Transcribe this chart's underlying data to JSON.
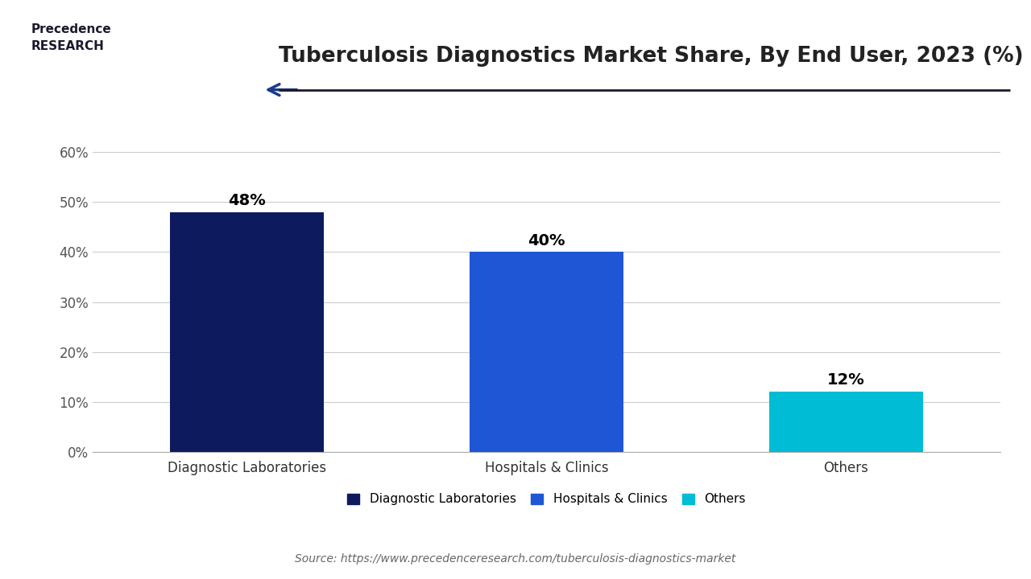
{
  "title": "Tuberculosis Diagnostics Market Share, By End User, 2023 (%)",
  "categories": [
    "Diagnostic Laboratories",
    "Hospitals & Clinics",
    "Others"
  ],
  "values": [
    48,
    40,
    12
  ],
  "bar_colors": [
    "#0d1b5e",
    "#1e56d6",
    "#00bcd4"
  ],
  "labels": [
    "48%",
    "40%",
    "12%"
  ],
  "ylim": [
    0,
    65
  ],
  "yticks": [
    0,
    10,
    20,
    30,
    40,
    50,
    60
  ],
  "ytick_labels": [
    "0%",
    "10%",
    "20%",
    "30%",
    "40%",
    "50%",
    "60%"
  ],
  "legend_labels": [
    "Diagnostic Laboratories",
    "Hospitals & Clinics",
    "Others"
  ],
  "source_text": "Source: https://www.precedenceresearch.com/tuberculosis-diagnostics-market",
  "background_color": "#ffffff",
  "title_fontsize": 19,
  "label_fontsize": 14,
  "tick_fontsize": 12,
  "legend_fontsize": 11,
  "source_fontsize": 10,
  "bar_width": 0.18
}
